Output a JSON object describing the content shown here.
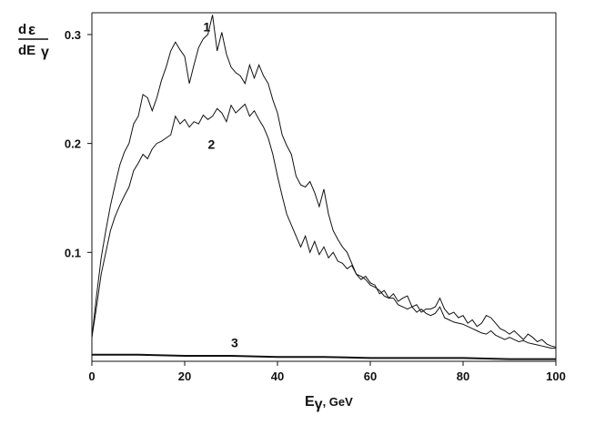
{
  "chart_data": {
    "type": "line",
    "title": "",
    "xlabel_main": "E",
    "xlabel_symbol": "γ",
    "xlabel_unit": ", GeV",
    "ylabel_num_d": "d",
    "ylabel_num_eps": "ε",
    "ylabel_den_d": "dE",
    "ylabel_den_sym": "γ",
    "xlim": [
      0,
      100
    ],
    "ylim": [
      0,
      0.32
    ],
    "grid": false,
    "x_ticks": [
      "0",
      "20",
      "40",
      "60",
      "80",
      "100"
    ],
    "y_ticks": [
      "0.1",
      "0.2",
      "0.3"
    ],
    "series": [
      {
        "name": "1",
        "x": [
          0,
          1,
          2,
          3,
          4,
          5,
          6,
          7,
          8,
          9,
          10,
          11,
          12,
          13,
          14,
          15,
          16,
          17,
          18,
          19,
          20,
          21,
          22,
          23,
          24,
          25,
          26,
          27,
          28,
          29,
          30,
          31,
          32,
          33,
          34,
          35,
          36,
          37,
          38,
          39,
          40,
          41,
          42,
          43,
          44,
          45,
          46,
          47,
          48,
          49,
          50,
          51,
          52,
          53,
          54,
          55,
          56,
          57,
          58,
          59,
          60,
          61,
          62,
          63,
          64,
          65,
          66,
          67,
          68,
          69,
          70,
          71,
          72,
          73,
          74,
          75,
          76,
          77,
          78,
          79,
          80,
          81,
          82,
          83,
          84,
          85,
          86,
          87,
          88,
          89,
          90,
          91,
          92,
          93,
          94,
          95,
          96,
          97,
          98,
          99,
          100
        ],
        "y": [
          0.022,
          0.06,
          0.095,
          0.12,
          0.143,
          0.162,
          0.18,
          0.192,
          0.2,
          0.218,
          0.225,
          0.245,
          0.242,
          0.23,
          0.242,
          0.258,
          0.27,
          0.285,
          0.293,
          0.286,
          0.28,
          0.255,
          0.272,
          0.288,
          0.296,
          0.3,
          0.318,
          0.285,
          0.302,
          0.282,
          0.27,
          0.265,
          0.262,
          0.255,
          0.272,
          0.26,
          0.272,
          0.262,
          0.255,
          0.24,
          0.228,
          0.208,
          0.198,
          0.19,
          0.17,
          0.162,
          0.16,
          0.165,
          0.155,
          0.142,
          0.158,
          0.135,
          0.12,
          0.112,
          0.105,
          0.1,
          0.09,
          0.08,
          0.075,
          0.078,
          0.072,
          0.07,
          0.062,
          0.065,
          0.058,
          0.062,
          0.055,
          0.058,
          0.06,
          0.05,
          0.052,
          0.045,
          0.048,
          0.048,
          0.05,
          0.058,
          0.048,
          0.043,
          0.045,
          0.04,
          0.042,
          0.035,
          0.038,
          0.032,
          0.035,
          0.042,
          0.04,
          0.035,
          0.03,
          0.028,
          0.025,
          0.028,
          0.024,
          0.02,
          0.025,
          0.022,
          0.018,
          0.02,
          0.016,
          0.014,
          0.013
        ]
      },
      {
        "name": "2",
        "x": [
          0,
          1,
          2,
          3,
          4,
          5,
          6,
          7,
          8,
          9,
          10,
          11,
          12,
          13,
          14,
          15,
          16,
          17,
          18,
          19,
          20,
          21,
          22,
          23,
          24,
          25,
          26,
          27,
          28,
          29,
          30,
          31,
          32,
          33,
          34,
          35,
          36,
          37,
          38,
          39,
          40,
          41,
          42,
          43,
          44,
          45,
          46,
          47,
          48,
          49,
          50,
          51,
          52,
          53,
          54,
          55,
          56,
          57,
          58,
          59,
          60,
          61,
          62,
          63,
          64,
          65,
          66,
          67,
          68,
          69,
          70,
          71,
          72,
          73,
          74,
          75,
          76,
          77,
          78,
          79,
          80,
          81,
          82,
          83,
          84,
          85,
          86,
          87,
          88,
          89,
          90,
          91,
          92,
          93,
          94,
          95,
          96,
          97,
          98,
          99,
          100
        ],
        "y": [
          0.022,
          0.05,
          0.08,
          0.1,
          0.12,
          0.133,
          0.143,
          0.152,
          0.16,
          0.175,
          0.182,
          0.19,
          0.186,
          0.195,
          0.2,
          0.202,
          0.205,
          0.208,
          0.225,
          0.218,
          0.222,
          0.215,
          0.22,
          0.218,
          0.226,
          0.222,
          0.225,
          0.232,
          0.228,
          0.22,
          0.235,
          0.228,
          0.232,
          0.236,
          0.225,
          0.23,
          0.222,
          0.215,
          0.205,
          0.19,
          0.17,
          0.152,
          0.135,
          0.125,
          0.115,
          0.105,
          0.115,
          0.1,
          0.11,
          0.098,
          0.105,
          0.095,
          0.1,
          0.092,
          0.09,
          0.085,
          0.088,
          0.08,
          0.078,
          0.075,
          0.07,
          0.068,
          0.065,
          0.06,
          0.058,
          0.058,
          0.052,
          0.05,
          0.048,
          0.05,
          0.045,
          0.048,
          0.044,
          0.042,
          0.044,
          0.05,
          0.04,
          0.038,
          0.036,
          0.035,
          0.034,
          0.032,
          0.03,
          0.028,
          0.026,
          0.025,
          0.028,
          0.024,
          0.022,
          0.02,
          0.022,
          0.02,
          0.018,
          0.019,
          0.017,
          0.016,
          0.015,
          0.014,
          0.013,
          0.012,
          0.012
        ]
      },
      {
        "name": "3",
        "x": [
          0,
          10,
          20,
          30,
          40,
          50,
          60,
          70,
          80,
          90,
          100
        ],
        "y": [
          0.006,
          0.006,
          0.005,
          0.005,
          0.004,
          0.004,
          0.003,
          0.003,
          0.003,
          0.002,
          0.002
        ]
      }
    ]
  }
}
